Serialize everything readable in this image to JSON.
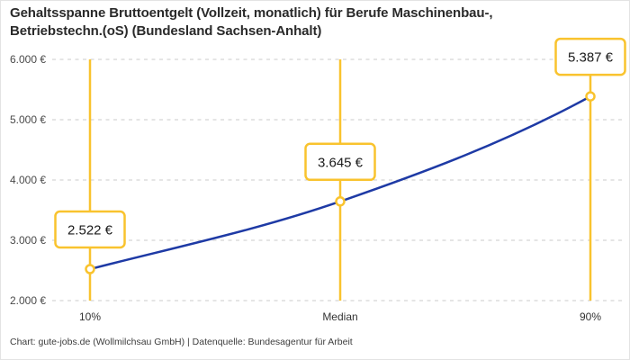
{
  "header": {
    "title_line1": "Gehaltsspanne Bruttoentgelt (Vollzeit, monatlich) für Berufe Maschinenbau-,",
    "title_line2": "Betriebstechn.(oS) (Bundesland Sachsen-Anhalt)"
  },
  "footer": {
    "credit": "Chart: gute-jobs.de (Wollmilchsau GmbH) | Datenquelle: Bundesagentur für Arbeit"
  },
  "chart_data": {
    "type": "line",
    "title": "Gehaltsspanne Bruttoentgelt (Vollzeit, monatlich) für Berufe Maschinenbau-, Betriebstechn.(oS) (Bundesland Sachsen-Anhalt)",
    "categories": [
      "10%",
      "Median",
      "90%"
    ],
    "values": [
      2522,
      3645,
      5387
    ],
    "value_labels": [
      "2.522 €",
      "3.645 €",
      "5.387 €"
    ],
    "y_ticks": [
      2000,
      3000,
      4000,
      5000,
      6000
    ],
    "y_tick_labels": [
      "2.000 €",
      "3.000 €",
      "4.000 €",
      "5.000 €",
      "6.000 €"
    ],
    "ylim": [
      2000,
      6000
    ],
    "xlabel": "",
    "ylabel": "",
    "grid": "horizontal-dashed",
    "legend": "none",
    "colors": {
      "line": "#1e3aa5",
      "highlight": "#f9c32e",
      "grid": "#cbcbcb",
      "marker_fill": "#ffffff",
      "label_box_bg": "#ffffff",
      "title_text": "#2a2a2a",
      "axis_text": "#4a4a4a",
      "footer_text": "#3d3d3d",
      "background": "#ffffff"
    }
  }
}
